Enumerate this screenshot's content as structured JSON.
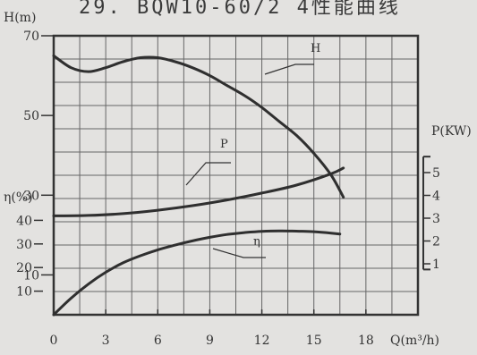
{
  "title": "29. BQW10-60/2  4性能曲线",
  "chart_data": {
    "type": "line",
    "title": "29. BQW10-60/2  4性能曲线",
    "xlabel": "Q(m³/h)",
    "x_ticks": [
      "0",
      "3",
      "6",
      "9",
      "12",
      "15",
      "18"
    ],
    "xlim": [
      0,
      21
    ],
    "axes": {
      "H": {
        "label": "H(m)",
        "ticks": [
          "70",
          "50",
          "30",
          "10"
        ],
        "range": [
          0,
          70
        ],
        "side": "left"
      },
      "eta": {
        "label": "η(%)",
        "ticks": [
          "40",
          "30",
          "20",
          "10"
        ],
        "range": [
          0,
          50
        ],
        "side": "left"
      },
      "P": {
        "label": "P(KW)",
        "ticks": [
          "5",
          "4",
          "3",
          "2",
          "1"
        ],
        "range": [
          0.6,
          5.8
        ],
        "side": "right"
      }
    },
    "grid": true,
    "series": [
      {
        "name": "H",
        "axis": "H",
        "x": [
          0,
          1,
          2,
          3,
          4,
          5,
          6,
          7,
          8,
          9,
          10,
          11,
          12,
          13,
          14,
          15,
          16,
          16.7
        ],
        "values": [
          65,
          62,
          61,
          62,
          63.5,
          64.5,
          64.5,
          63.5,
          62,
          60,
          57.5,
          55,
          52,
          48.5,
          45,
          40.5,
          35,
          29.5
        ]
      },
      {
        "name": "P",
        "axis": "P",
        "x": [
          0,
          2,
          4,
          6,
          8,
          10,
          12,
          14,
          16,
          16.7
        ],
        "values": [
          3.1,
          3.12,
          3.2,
          3.35,
          3.55,
          3.8,
          4.1,
          4.45,
          4.95,
          5.2
        ]
      },
      {
        "name": "η",
        "axis": "eta",
        "x": [
          0,
          1,
          2,
          3,
          4,
          5,
          6,
          7,
          8,
          9,
          10,
          11,
          12,
          13,
          14,
          15,
          16,
          16.5
        ],
        "values": [
          0,
          7,
          13,
          18,
          22,
          25,
          27.5,
          29.5,
          31.3,
          32.8,
          34,
          34.8,
          35.3,
          35.5,
          35.4,
          35.2,
          34.6,
          34.2
        ]
      }
    ]
  }
}
